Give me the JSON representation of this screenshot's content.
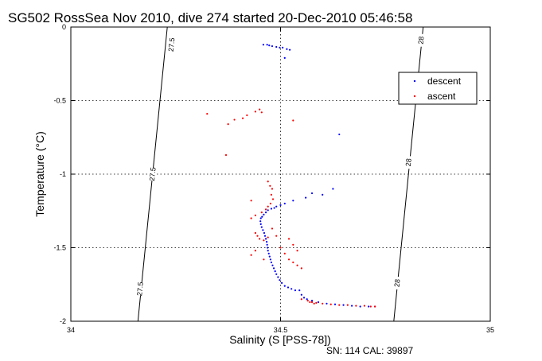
{
  "chart_data": {
    "type": "scatter",
    "title": "SG502 RossSea Nov 2010, dive 274 started 20-Dec-2010 05:46:58",
    "xlabel": "Salinity (S [PSS-78])",
    "ylabel": "Temperature (°C)",
    "xlim": [
      34,
      35
    ],
    "ylim": [
      -2,
      0
    ],
    "xticks": [
      "34",
      "34.5",
      "35"
    ],
    "yticks": [
      "0",
      "-0.5",
      "-1",
      "-1.5",
      "-2"
    ],
    "grid": true,
    "legend_position": "top-right",
    "footer": "SN: 114  CAL: 39897",
    "density_contours": [
      {
        "label": "27.5",
        "points": [
          [
            34.23,
            0
          ],
          [
            34.16,
            -2
          ]
        ],
        "label_positions": [
          [
            34.24,
            -0.12
          ],
          [
            34.195,
            -1.0
          ],
          [
            34.165,
            -1.78
          ]
        ]
      },
      {
        "label": "28",
        "points": [
          [
            34.84,
            0
          ],
          [
            34.77,
            -2
          ]
        ],
        "label_positions": [
          [
            34.835,
            -0.09
          ],
          [
            34.805,
            -0.92
          ],
          [
            34.778,
            -1.74
          ]
        ]
      }
    ],
    "series": [
      {
        "name": "descent",
        "color": "#0000ff",
        "points": [
          [
            34.459,
            -0.12
          ],
          [
            34.468,
            -0.12
          ],
          [
            34.473,
            -0.125
          ],
          [
            34.48,
            -0.13
          ],
          [
            34.49,
            -0.135
          ],
          [
            34.498,
            -0.14
          ],
          [
            34.505,
            -0.14
          ],
          [
            34.515,
            -0.15
          ],
          [
            34.522,
            -0.155
          ],
          [
            34.51,
            -0.21
          ],
          [
            34.625,
            -1.1
          ],
          [
            34.6,
            -1.14
          ],
          [
            34.56,
            -1.16
          ],
          [
            34.53,
            -1.18
          ],
          [
            34.51,
            -1.2
          ],
          [
            34.5,
            -1.21
          ],
          [
            34.49,
            -1.22
          ],
          [
            34.485,
            -1.23
          ],
          [
            34.478,
            -1.235
          ],
          [
            34.47,
            -1.245
          ],
          [
            34.465,
            -1.26
          ],
          [
            34.46,
            -1.275
          ],
          [
            34.456,
            -1.29
          ],
          [
            34.453,
            -1.3
          ],
          [
            34.452,
            -1.32
          ],
          [
            34.453,
            -1.34
          ],
          [
            34.455,
            -1.36
          ],
          [
            34.458,
            -1.38
          ],
          [
            34.461,
            -1.4
          ],
          [
            34.463,
            -1.42
          ],
          [
            34.465,
            -1.44
          ],
          [
            34.467,
            -1.46
          ],
          [
            34.468,
            -1.48
          ],
          [
            34.469,
            -1.5
          ],
          [
            34.47,
            -1.52
          ],
          [
            34.472,
            -1.54
          ],
          [
            34.474,
            -1.56
          ],
          [
            34.476,
            -1.58
          ],
          [
            34.478,
            -1.6
          ],
          [
            34.481,
            -1.62
          ],
          [
            34.484,
            -1.64
          ],
          [
            34.487,
            -1.66
          ],
          [
            34.49,
            -1.68
          ],
          [
            34.494,
            -1.7
          ],
          [
            34.498,
            -1.72
          ],
          [
            34.503,
            -1.74
          ],
          [
            34.51,
            -1.76
          ],
          [
            34.518,
            -1.77
          ],
          [
            34.526,
            -1.78
          ],
          [
            34.535,
            -1.79
          ],
          [
            34.545,
            -1.79
          ],
          [
            34.55,
            -1.82
          ],
          [
            34.556,
            -1.84
          ],
          [
            34.563,
            -1.85
          ],
          [
            34.575,
            -1.86
          ],
          [
            34.59,
            -1.87
          ],
          [
            34.61,
            -1.88
          ],
          [
            34.63,
            -1.885
          ],
          [
            34.65,
            -1.89
          ],
          [
            34.67,
            -1.895
          ],
          [
            34.69,
            -1.9
          ],
          [
            34.71,
            -1.9
          ],
          [
            34.725,
            -1.9
          ],
          [
            34.64,
            -0.73
          ],
          [
            34.575,
            -1.13
          ]
        ]
      },
      {
        "name": "ascent",
        "color": "#ff0000",
        "points": [
          [
            34.325,
            -0.59
          ],
          [
            34.375,
            -0.66
          ],
          [
            34.39,
            -0.63
          ],
          [
            34.41,
            -0.62
          ],
          [
            34.42,
            -0.6
          ],
          [
            34.44,
            -0.575
          ],
          [
            34.45,
            -0.56
          ],
          [
            34.455,
            -0.58
          ],
          [
            34.53,
            -0.635
          ],
          [
            34.37,
            -0.87
          ],
          [
            34.47,
            -1.05
          ],
          [
            34.475,
            -1.08
          ],
          [
            34.48,
            -1.1
          ],
          [
            34.478,
            -1.14
          ],
          [
            34.482,
            -1.17
          ],
          [
            34.476,
            -1.2
          ],
          [
            34.47,
            -1.22
          ],
          [
            34.465,
            -1.24
          ],
          [
            34.455,
            -1.26
          ],
          [
            34.44,
            -1.28
          ],
          [
            34.43,
            -1.18
          ],
          [
            34.43,
            -1.3
          ],
          [
            34.44,
            -1.4
          ],
          [
            34.445,
            -1.42
          ],
          [
            34.45,
            -1.44
          ],
          [
            34.46,
            -1.45
          ],
          [
            34.47,
            -1.43
          ],
          [
            34.48,
            -1.37
          ],
          [
            34.49,
            -1.42
          ],
          [
            34.5,
            -1.5
          ],
          [
            34.51,
            -1.54
          ],
          [
            34.52,
            -1.58
          ],
          [
            34.53,
            -1.6
          ],
          [
            34.54,
            -1.62
          ],
          [
            34.55,
            -1.64
          ],
          [
            34.54,
            -1.52
          ],
          [
            34.53,
            -1.48
          ],
          [
            34.52,
            -1.44
          ],
          [
            34.44,
            -1.52
          ],
          [
            34.43,
            -1.55
          ],
          [
            34.46,
            -1.58
          ],
          [
            34.55,
            -1.85
          ],
          [
            34.565,
            -1.86
          ],
          [
            34.575,
            -1.87
          ],
          [
            34.585,
            -1.875
          ],
          [
            34.6,
            -1.88
          ],
          [
            34.62,
            -1.885
          ],
          [
            34.64,
            -1.89
          ],
          [
            34.66,
            -1.89
          ],
          [
            34.68,
            -1.895
          ],
          [
            34.7,
            -1.895
          ],
          [
            34.715,
            -1.9
          ],
          [
            34.725,
            -1.9
          ],
          [
            34.58,
            -1.88
          ],
          [
            34.57,
            -1.87
          ]
        ]
      }
    ]
  }
}
